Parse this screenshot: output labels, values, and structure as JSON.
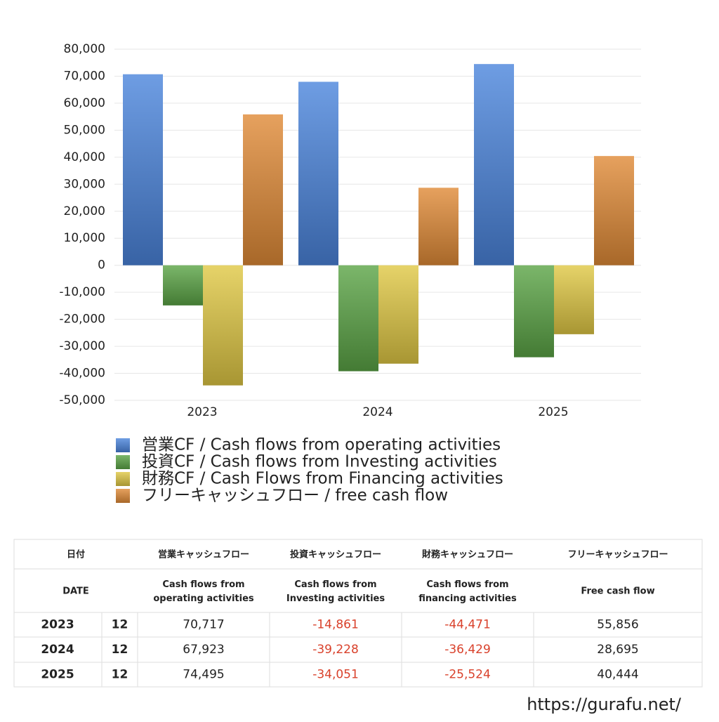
{
  "chart_data": {
    "type": "bar",
    "categories": [
      "2023",
      "2024",
      "2025"
    ],
    "series": [
      {
        "name": "営業CF / Cash flows from operating activities",
        "color": "#4a84dc",
        "values": [
          70717,
          67923,
          74495
        ]
      },
      {
        "name": "投資CF / Cash flows from Investing activities",
        "color": "#5aa445",
        "values": [
          -14861,
          -39228,
          -34051
        ]
      },
      {
        "name": "財務CF / Cash Flows from Financing activities",
        "color": "#e0c844",
        "values": [
          -44471,
          -36429,
          -25524
        ]
      },
      {
        "name": "フリーキャッシュフロー / free cash flow",
        "color": "#e08a36",
        "values": [
          55856,
          28695,
          40444
        ]
      }
    ],
    "ylim": [
      -50000,
      80000
    ],
    "yticks": [
      {
        "value": -50000,
        "label": "-50,000"
      },
      {
        "value": -40000,
        "label": "-40,000"
      },
      {
        "value": -30000,
        "label": "-30,000"
      },
      {
        "value": -20000,
        "label": "-20,000"
      },
      {
        "value": -10000,
        "label": "-10,000"
      },
      0,
      {
        "value": 10000,
        "label": "10,000"
      },
      {
        "value": 20000,
        "label": "20,000"
      },
      {
        "value": 30000,
        "label": "30,000"
      },
      {
        "value": 40000,
        "label": "40,000"
      },
      {
        "value": 50000,
        "label": "50,000"
      },
      {
        "value": 60000,
        "label": "60,000"
      },
      {
        "value": 70000,
        "label": "70,000"
      },
      {
        "value": 80000,
        "label": "80,000"
      }
    ],
    "grid": true
  },
  "table": {
    "header_jp": [
      "日付",
      "営業キャッシュフロー",
      "投資キャッシュフロー",
      "財務キャッシュフロー",
      "フリーキャッシュフロー"
    ],
    "header_en": [
      "DATE",
      "Cash flows from operating activities",
      "Cash flows from Investing activities",
      "Cash flows from financing activities",
      "Free cash flow"
    ],
    "rows": [
      [
        "2023",
        "12",
        "70,717",
        "-14,861",
        "-44,471",
        "55,856"
      ],
      [
        "2024",
        "12",
        "67,923",
        "-39,228",
        "-36,429",
        "28,695"
      ],
      [
        "2025",
        "12",
        "74,495",
        "-34,051",
        "-25,524",
        "40,444"
      ]
    ]
  },
  "footer": "https://gurafu.net/"
}
